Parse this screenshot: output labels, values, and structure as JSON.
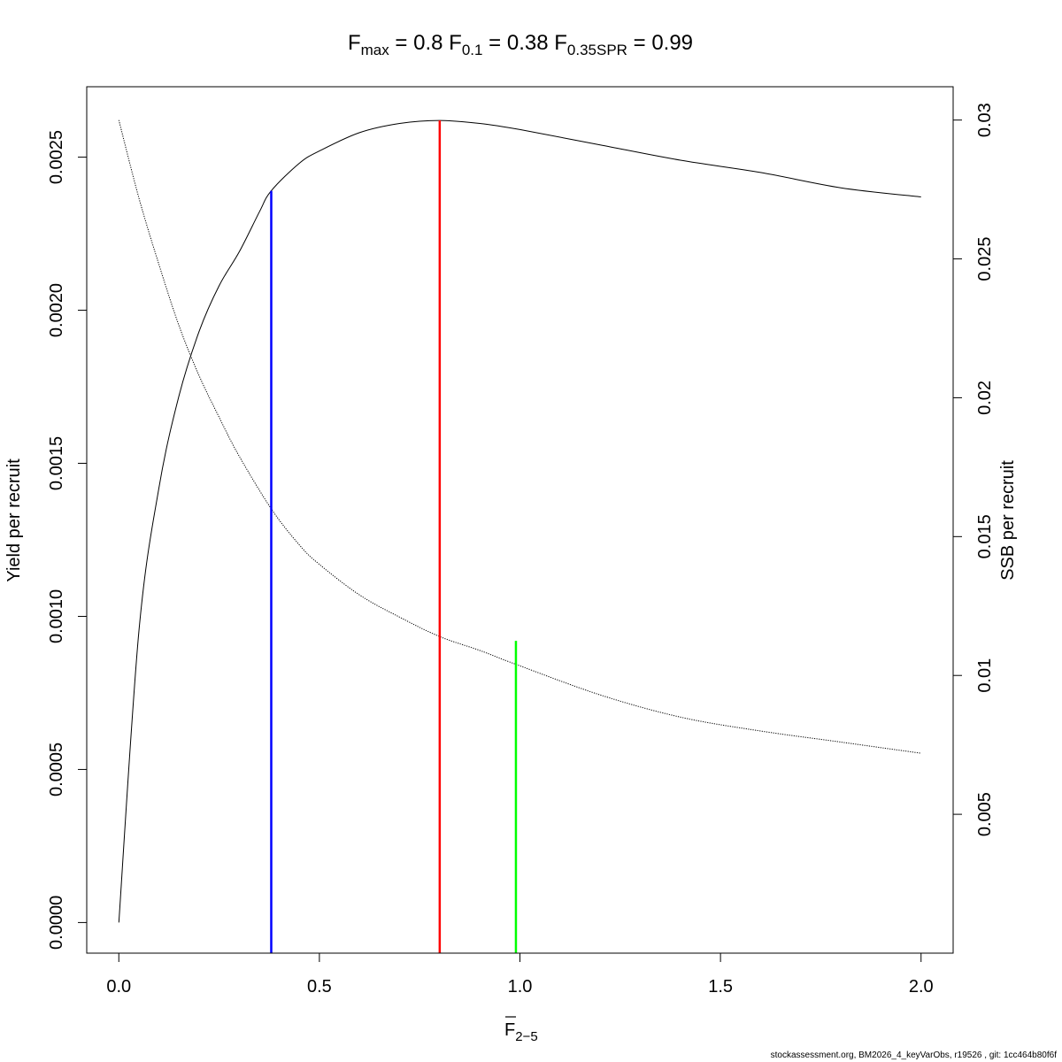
{
  "chart_data": {
    "type": "line",
    "title": {
      "fmax": {
        "base": "F",
        "sub": "max",
        "value": "0.8"
      },
      "f01": {
        "base": "F",
        "sub": "0.1",
        "value": "0.38"
      },
      "fspr": {
        "base": "F",
        "sub": "0.35SPR",
        "value": "0.99"
      }
    },
    "xlabel": {
      "base": "F",
      "sub": "2−5"
    },
    "ylabel_left": "Yield per recruit",
    "ylabel_right": "SSB per recruit",
    "xlim": [
      -0.08,
      2.08
    ],
    "ylim_left": [
      -0.0001,
      0.00273
    ],
    "ylim_right": [
      0,
      0.0312
    ],
    "x_ticks": [
      "0.0",
      "0.5",
      "1.0",
      "1.5",
      "2.0"
    ],
    "y_left_ticks": [
      "0.0000",
      "0.0005",
      "0.0010",
      "0.0015",
      "0.0020",
      "0.0025"
    ],
    "y_right_ticks": [
      "0.005",
      "0.01",
      "0.015",
      "0.02",
      "0.025",
      "0.03"
    ],
    "series": [
      {
        "axis": "left",
        "style": "solid",
        "color": "#000000",
        "x": [
          0,
          0.05,
          0.1,
          0.15,
          0.2,
          0.25,
          0.3,
          0.35,
          0.38,
          0.45,
          0.5,
          0.6,
          0.7,
          0.8,
          0.9,
          1.0,
          1.2,
          1.4,
          1.6,
          1.8,
          2.0
        ],
        "y": [
          0,
          0.00095,
          0.00142,
          0.00172,
          0.00193,
          0.00208,
          0.00219,
          0.00232,
          0.00239,
          0.00248,
          0.00252,
          0.00258,
          0.00261,
          0.00262,
          0.00261,
          0.00259,
          0.00254,
          0.00249,
          0.00245,
          0.0024,
          0.00237
        ]
      },
      {
        "axis": "right",
        "style": "dotted",
        "color": "#000000",
        "x": [
          0,
          0.05,
          0.1,
          0.15,
          0.2,
          0.25,
          0.3,
          0.38,
          0.45,
          0.5,
          0.6,
          0.7,
          0.8,
          0.9,
          0.99,
          1.2,
          1.4,
          1.6,
          1.8,
          2.0
        ],
        "y": [
          0.03,
          0.0272,
          0.0248,
          0.0226,
          0.0208,
          0.0193,
          0.0179,
          0.016,
          0.0147,
          0.014,
          0.0129,
          0.0121,
          0.0114,
          0.0109,
          0.0104,
          0.0093,
          0.0085,
          0.008,
          0.0076,
          0.0072
        ]
      }
    ],
    "reference_lines": [
      {
        "name": "F0.1",
        "x": 0.38,
        "y_top": 0.00239,
        "color": "#0000ff"
      },
      {
        "name": "Fmax",
        "x": 0.8,
        "y_top": 0.00262,
        "color": "#ff0000"
      },
      {
        "name": "F0.35SPR",
        "x": 0.99,
        "y_top": 0.00092,
        "color": "#00ff00"
      }
    ]
  },
  "footer": "stockassessment.org, BM2026_4_keyVarObs, r19526 , git: 1cc464b80f6f"
}
